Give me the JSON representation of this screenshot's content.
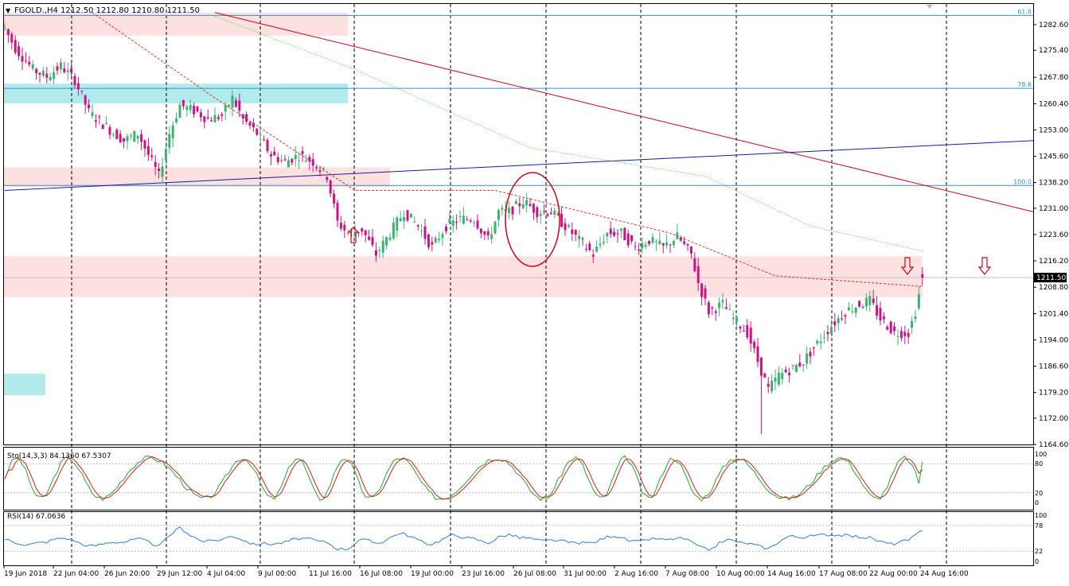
{
  "symbol_header": "FGOLD.,H4  1212.50 1212.80 1210.80 1211.50",
  "price_panel": {
    "ylim": [
      1164.6,
      1286.0
    ],
    "y_ticks": [
      "1282.60",
      "1275.40",
      "1267.80",
      "1260.40",
      "1253.00",
      "1245.60",
      "1238.20",
      "1231.00",
      "1223.60",
      "1216.20",
      "1208.80",
      "1201.40",
      "1194.00",
      "1186.60",
      "1179.20",
      "1172.00",
      "1164.60"
    ],
    "current_price_label": "1211.50",
    "fib_labels": [
      {
        "text": "61.8",
        "price": 1285.2
      },
      {
        "text": "78.6",
        "price": 1264.7
      },
      {
        "text": "100.0",
        "price": 1237.4
      }
    ]
  },
  "stoch_panel": {
    "label": "Sto(14,3,3) 84.1360 67.5307",
    "ticks": [
      "100",
      "80",
      "20",
      "0"
    ]
  },
  "rsi_panel": {
    "label": "RSI(14) 67.0636",
    "ticks": [
      "100",
      "78",
      "22",
      "0"
    ]
  },
  "x_labels": [
    "19 Jun 2018",
    "22 Jun 04:00",
    "26 Jun 20:00",
    "29 Jun 12:00",
    "4 Jul 04:00",
    "9 Jul 00:00",
    "11 Jul 16:00",
    "16 Jul 08:00",
    "19 Jul 00:00",
    "23 Jul 16:00",
    "26 Jul 08:00",
    "31 Jul 00:00",
    "2 Aug 16:00",
    "7 Aug 08:00",
    "10 Aug 00:00",
    "14 Aug 16:00",
    "17 Aug 08:00",
    "22 Aug 00:00",
    "24 Aug 16:00"
  ],
  "colors": {
    "bull": "#3cb371",
    "bear": "#c71585",
    "trend_red": "#d0021b",
    "trend_blue": "#1a1aa6",
    "zone_pink": "#fde0e0",
    "zone_cyan": "#b2ebeb",
    "ma_red": "#e23030",
    "ma_green": "#3ec43e",
    "rsi_line": "#2a7fd4",
    "fib_line": "#3a8fc8"
  },
  "chart_data": {
    "type": "candlestick",
    "title": "FGOLD., H4",
    "ohlc_last": {
      "open": 1212.5,
      "high": 1212.8,
      "low": 1210.8,
      "close": 1211.5
    },
    "close_path": [
      [
        0,
        1281.5
      ],
      [
        3,
        1276
      ],
      [
        8,
        1270
      ],
      [
        12,
        1268
      ],
      [
        16,
        1271
      ],
      [
        20,
        1267
      ],
      [
        24,
        1258
      ],
      [
        30,
        1253
      ],
      [
        34,
        1250
      ],
      [
        38,
        1252
      ],
      [
        41,
        1246
      ],
      [
        44,
        1240
      ],
      [
        47,
        1252
      ],
      [
        50,
        1260
      ],
      [
        55,
        1258
      ],
      [
        58,
        1256
      ],
      [
        62,
        1257
      ],
      [
        65,
        1262
      ],
      [
        68,
        1256
      ],
      [
        72,
        1252
      ],
      [
        76,
        1246
      ],
      [
        80,
        1244
      ],
      [
        84,
        1246
      ],
      [
        88,
        1244
      ],
      [
        92,
        1240
      ],
      [
        95,
        1227
      ],
      [
        98,
        1224
      ],
      [
        102,
        1225
      ],
      [
        106,
        1218
      ],
      [
        110,
        1224
      ],
      [
        114,
        1230
      ],
      [
        118,
        1226
      ],
      [
        122,
        1220
      ],
      [
        126,
        1226
      ],
      [
        130,
        1228
      ],
      [
        134,
        1228
      ],
      [
        138,
        1222
      ],
      [
        141,
        1230
      ],
      [
        144,
        1230
      ],
      [
        148,
        1233
      ],
      [
        152,
        1230
      ],
      [
        156,
        1230
      ],
      [
        160,
        1226
      ],
      [
        164,
        1222
      ],
      [
        168,
        1218
      ],
      [
        172,
        1224
      ],
      [
        176,
        1224
      ],
      [
        180,
        1220
      ],
      [
        184,
        1222
      ],
      [
        188,
        1220
      ],
      [
        192,
        1223
      ],
      [
        196,
        1218
      ],
      [
        198,
        1210
      ],
      [
        201,
        1202
      ],
      [
        205,
        1204
      ],
      [
        208,
        1200
      ],
      [
        212,
        1196
      ],
      [
        215,
        1188
      ],
      [
        218,
        1180
      ],
      [
        221,
        1184
      ],
      [
        225,
        1186
      ],
      [
        228,
        1188
      ],
      [
        232,
        1193
      ],
      [
        236,
        1198
      ],
      [
        240,
        1202
      ],
      [
        244,
        1204
      ],
      [
        247,
        1205
      ],
      [
        250,
        1200
      ],
      [
        254,
        1196
      ],
      [
        258,
        1196
      ],
      [
        260,
        1202
      ],
      [
        262,
        1211.5
      ]
    ],
    "range_points": {
      "highest": 1283.0,
      "lowest": 1167.5
    },
    "moving_averages": [
      {
        "style": "dashed",
        "color": "red",
        "values": [
          [
            25,
            1286
          ],
          [
            60,
            1262
          ],
          [
            100,
            1236
          ],
          [
            140,
            1236
          ],
          [
            190,
            1224
          ],
          [
            220,
            1212
          ],
          [
            262,
            1209
          ]
        ]
      },
      {
        "style": "dotted",
        "color": "green",
        "values": [
          [
            60,
            1285
          ],
          [
            100,
            1270
          ],
          [
            150,
            1248
          ],
          [
            200,
            1240
          ],
          [
            230,
            1226
          ],
          [
            262,
            1219
          ]
        ]
      }
    ],
    "trendlines": [
      {
        "color": "red",
        "from": [
          60,
          1286
        ],
        "to": [
          295,
          1230
        ]
      },
      {
        "color": "blue",
        "from": [
          0,
          1236
        ],
        "to": [
          295,
          1250
        ]
      }
    ],
    "zones": [
      {
        "color": "pink",
        "price_top": 1286,
        "price_bottom": 1279.5,
        "x_end": 98
      },
      {
        "color": "cyan",
        "price_top": 1266,
        "price_bottom": 1260.5,
        "x_end": 98
      },
      {
        "color": "pink",
        "price_top": 1242.5,
        "price_bottom": 1237,
        "x_end": 110
      },
      {
        "color": "pink",
        "price_top": 1217.5,
        "price_bottom": 1206,
        "x_end": 262
      }
    ],
    "stochastic": {
      "k": 84.136,
      "d": 67.5307,
      "levels": [
        80,
        20
      ]
    },
    "rsi": {
      "value": 67.0636,
      "levels": [
        78,
        22
      ]
    }
  }
}
